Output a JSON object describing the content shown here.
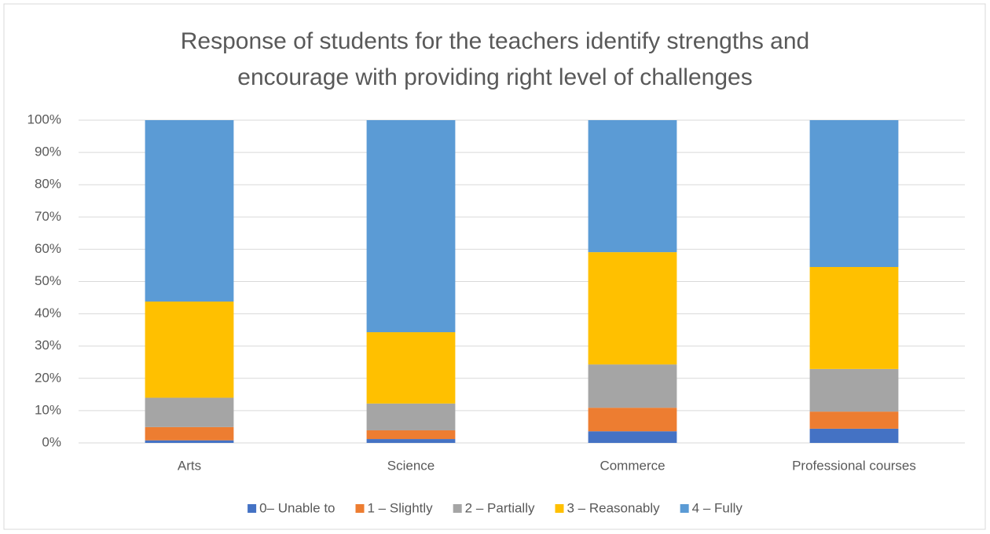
{
  "chart_data": {
    "type": "stacked_bar",
    "title": "Response of students for the teachers identify strengths and encourage with providing right level of challenges",
    "categories": [
      "Arts",
      "Science",
      "Commerce",
      "Professional courses"
    ],
    "series": [
      {
        "name": "0– Unable to",
        "color": "#4472c4",
        "values": [
          0.8,
          1.2,
          3.6,
          4.4
        ]
      },
      {
        "name": "1 – Slightly",
        "color": "#ed7d31",
        "values": [
          4.1,
          2.7,
          7.3,
          5.3
        ]
      },
      {
        "name": "2 – Partially",
        "color": "#a5a5a5",
        "values": [
          9.1,
          8.3,
          13.4,
          13.2
        ]
      },
      {
        "name": "3 – Reasonably",
        "color": "#ffc000",
        "values": [
          29.8,
          22.1,
          34.8,
          31.6
        ]
      },
      {
        "name": "4 – Fully",
        "color": "#5b9bd5",
        "values": [
          56.2,
          65.7,
          40.9,
          45.5
        ]
      }
    ],
    "ylim": [
      0,
      100
    ],
    "yticks": [
      {
        "value": 0,
        "label": "0%"
      },
      {
        "value": 10,
        "label": "10%"
      },
      {
        "value": 20,
        "label": "20%"
      },
      {
        "value": 30,
        "label": "30%"
      },
      {
        "value": 40,
        "label": "40%"
      },
      {
        "value": 50,
        "label": "50%"
      },
      {
        "value": 60,
        "label": "60%"
      },
      {
        "value": 70,
        "label": "70%"
      },
      {
        "value": 80,
        "label": "80%"
      },
      {
        "value": 90,
        "label": "90%"
      },
      {
        "value": 100,
        "label": "100%"
      }
    ],
    "grid": true,
    "legend": "bottom"
  }
}
